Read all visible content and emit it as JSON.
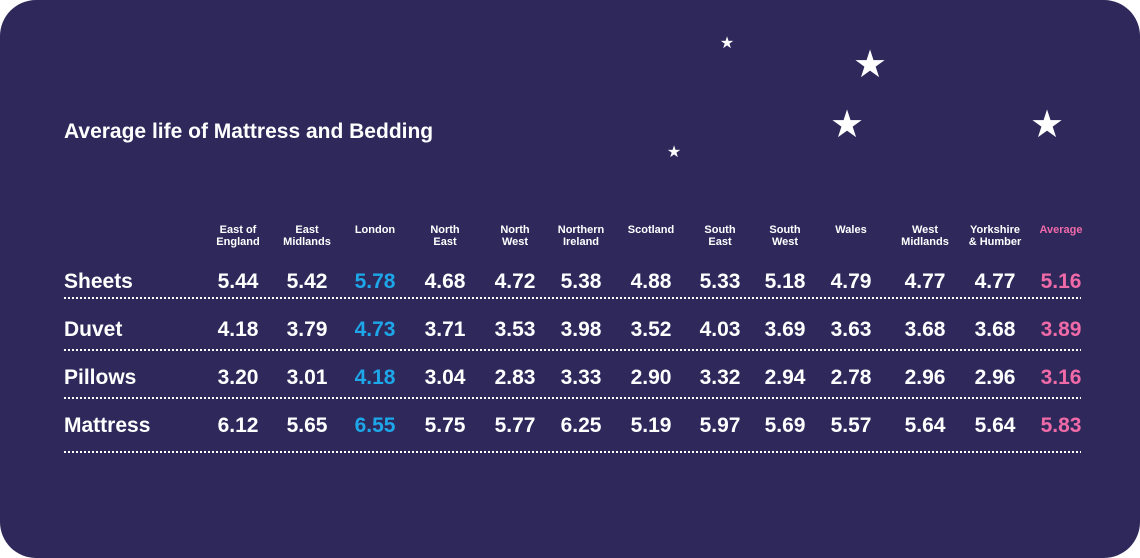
{
  "colors": {
    "background": "#2e285b",
    "text": "#ffffff",
    "london_highlight": "#1ea7e8",
    "average_highlight": "#f06aa8"
  },
  "chart_data": {
    "type": "table",
    "title": "Average life of Mattress and Bedding",
    "columns": [
      [
        "East of",
        "England"
      ],
      [
        "East",
        "Midlands"
      ],
      [
        "London"
      ],
      [
        "North",
        "East"
      ],
      [
        "North",
        "West"
      ],
      [
        "Northern",
        "Ireland"
      ],
      [
        "Scotland"
      ],
      [
        "South",
        "East"
      ],
      [
        "South",
        "West"
      ],
      [
        "Wales"
      ],
      [
        "West",
        "Midlands"
      ],
      [
        "Yorkshire",
        "& Humber"
      ],
      [
        "Average"
      ]
    ],
    "rows": [
      {
        "label": "Sheets",
        "values": [
          "5.44",
          "5.42",
          "5.78",
          "4.68",
          "4.72",
          "5.38",
          "4.88",
          "5.33",
          "5.18",
          "4.79",
          "4.77",
          "4.77",
          "5.16"
        ]
      },
      {
        "label": "Duvet",
        "values": [
          "4.18",
          "3.79",
          "4.73",
          "3.71",
          "3.53",
          "3.98",
          "3.52",
          "4.03",
          "3.69",
          "3.63",
          "3.68",
          "3.68",
          "3.89"
        ]
      },
      {
        "label": "Pillows",
        "values": [
          "3.20",
          "3.01",
          "4.18",
          "3.04",
          "2.83",
          "3.33",
          "2.90",
          "3.32",
          "2.94",
          "2.78",
          "2.96",
          "2.96",
          "3.16"
        ]
      },
      {
        "label": "Mattress",
        "values": [
          "6.12",
          "5.65",
          "6.55",
          "5.75",
          "5.77",
          "6.25",
          "5.19",
          "5.97",
          "5.69",
          "5.57",
          "5.64",
          "5.64",
          "5.83"
        ]
      }
    ],
    "highlight_column": "London",
    "average_column": "Average"
  },
  "decorations": {
    "star_icons": [
      "star-icon",
      "star-icon",
      "star-icon",
      "star-icon",
      "star-icon"
    ]
  }
}
